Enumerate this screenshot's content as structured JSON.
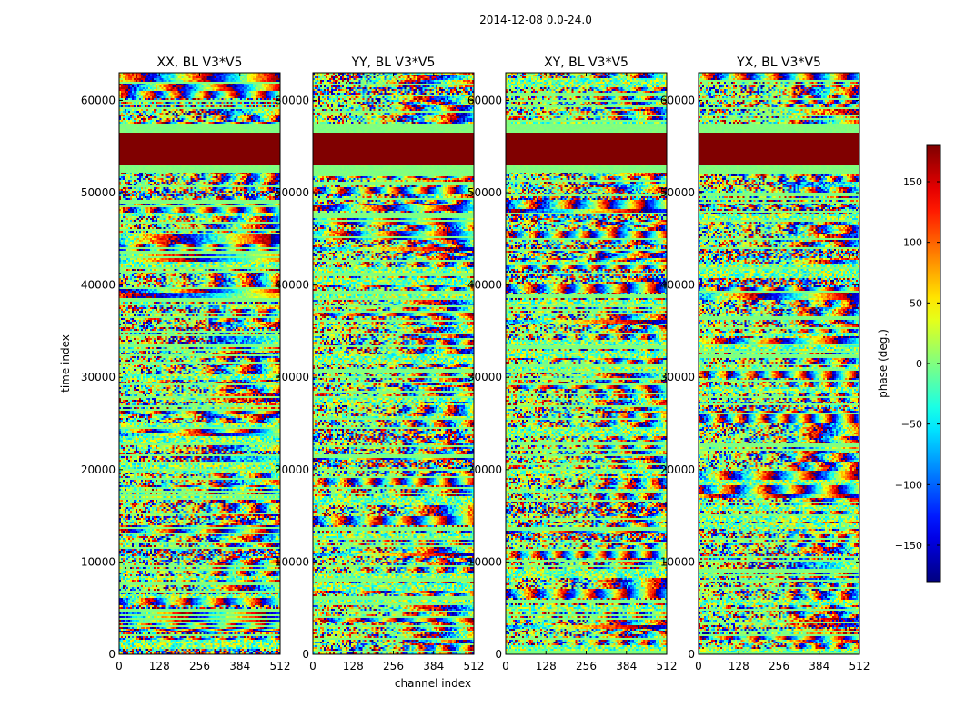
{
  "figure": {
    "suptitle": "2014-12-08 0.0-24.0"
  },
  "chart_data": {
    "type": "heatmap",
    "xlabel": "channel index",
    "ylabel": "time index",
    "xlim": [
      0,
      512
    ],
    "ylim": [
      0,
      63000
    ],
    "x_ticks": [
      0,
      128,
      256,
      384,
      512
    ],
    "y_ticks": [
      0,
      10000,
      20000,
      30000,
      40000,
      50000,
      60000
    ],
    "panels": [
      {
        "title": "XX, BL V3*V5",
        "pol": "XX"
      },
      {
        "title": "YY, BL V3*V5",
        "pol": "YY"
      },
      {
        "title": "XY, BL V3*V5",
        "pol": "XY"
      },
      {
        "title": "YX, BL V3*V5",
        "pol": "YX"
      }
    ],
    "flagged_time_range": [
      53000,
      56600
    ],
    "colorbar": {
      "label": "phase (deg.)",
      "range": [
        -180,
        180
      ],
      "ticks": [
        -150,
        -100,
        -50,
        0,
        50,
        100,
        150
      ],
      "colormap": "jet"
    }
  }
}
